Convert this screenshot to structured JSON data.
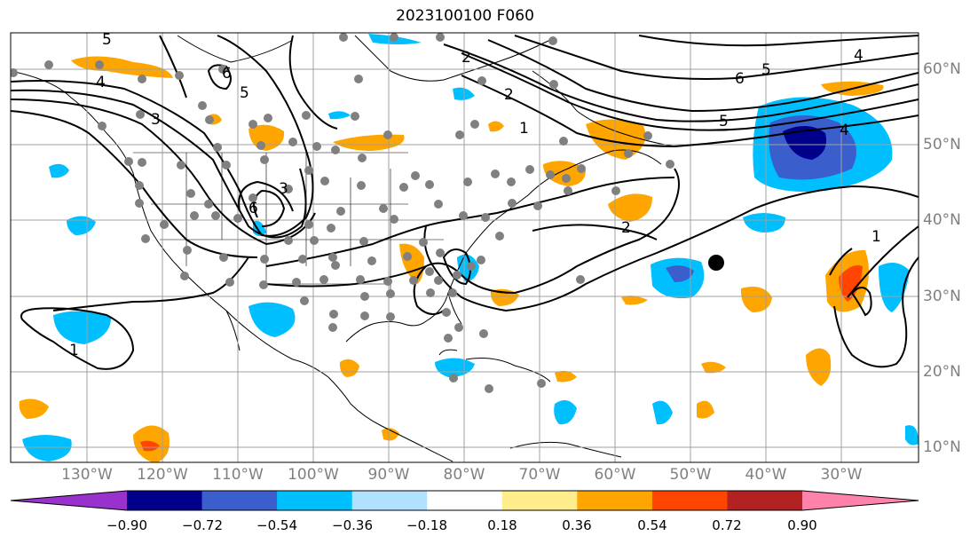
{
  "title": "2023100100 F060",
  "lat_labels": [
    "60°N",
    "50°N",
    "40°N",
    "30°N",
    "20°N",
    "10°N"
  ],
  "lon_labels": [
    "130°W",
    "120°W",
    "110°W",
    "100°W",
    "90°W",
    "80°W",
    "70°W",
    "60°W",
    "50°W",
    "40°W",
    "30°W"
  ],
  "contour_labels": [
    "5",
    "4",
    "3",
    "2",
    "1",
    "6",
    "5",
    "4",
    "6",
    "5",
    "5",
    "4",
    "2",
    "1",
    "1",
    "3",
    "2",
    "6"
  ],
  "colorbar": {
    "colors": [
      "#9932cc",
      "#00008b",
      "#3a5fcd",
      "#00bfff",
      "#b0e2ff",
      "#ffffff",
      "#ffec8b",
      "#ffa500",
      "#ff4500",
      "#b22222",
      "#ff82ab"
    ],
    "tick_labels": [
      "−0.90",
      "−0.72",
      "−0.54",
      "−0.36",
      "−0.18",
      "0.18",
      "0.36",
      "0.54",
      "0.72",
      "0.90"
    ]
  },
  "map": {
    "extent_lon": [
      -135,
      -20
    ],
    "extent_lat": [
      8,
      65
    ],
    "gridline_color": "#a0a0a0",
    "station_color": "#808080",
    "storm_marker": {
      "lon": -46.5,
      "lat": 34.5
    }
  }
}
